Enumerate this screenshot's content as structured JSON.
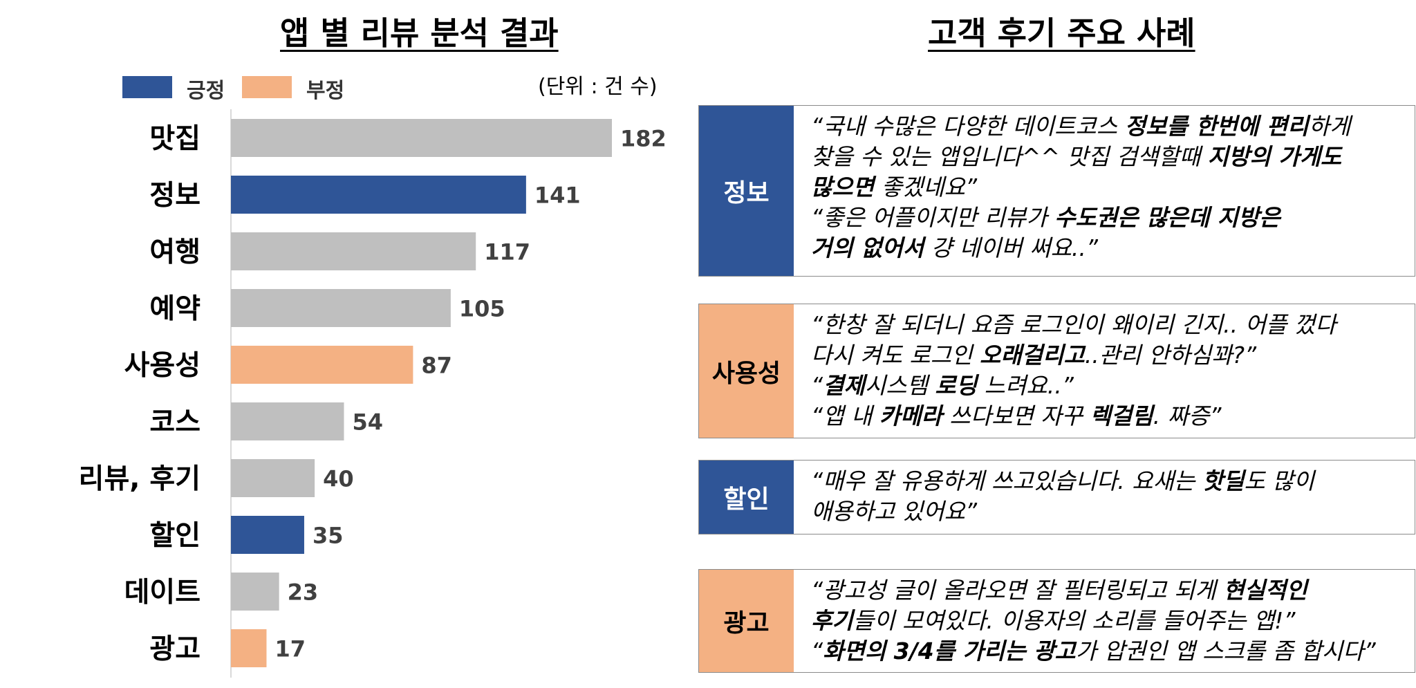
{
  "left_title": "앱 별 리뷰 분석 결과",
  "right_title": "고객 후기 주요 사례",
  "legend": [
    {
      "label": "긍정",
      "color": "#2f5597"
    },
    {
      "label": "부정",
      "color": "#f4b183"
    }
  ],
  "unit_note": "(단위 : 건 수)",
  "chart_data": {
    "type": "bar",
    "orientation": "horizontal",
    "categories": [
      "맛집",
      "정보",
      "여행",
      "예약",
      "사용성",
      "코스",
      "리뷰, 후기",
      "할인",
      "데이트",
      "광고"
    ],
    "values": [
      182,
      141,
      117,
      105,
      87,
      54,
      40,
      35,
      23,
      17
    ],
    "sentiment": [
      "neutral",
      "positive",
      "neutral",
      "neutral",
      "negative",
      "neutral",
      "neutral",
      "positive",
      "neutral",
      "negative"
    ],
    "colors": {
      "positive": "#2f5597",
      "negative": "#f4b183",
      "neutral": "#bfbfbf"
    },
    "xlim": [
      0,
      200
    ],
    "grid": false,
    "legend_position": "top-left"
  },
  "cases": [
    {
      "tag": "정보",
      "tag_type": "positive",
      "lines": [
        [
          {
            "t": "“국내 수많은 다양한 데이트코스 "
          },
          {
            "t": "정보를 한번에 편리",
            "b": true
          },
          {
            "t": "하게"
          }
        ],
        [
          {
            "t": "찾을 수 있는 앱입니다^^ 맛집 검색할때 "
          },
          {
            "t": "지방의 가게도",
            "b": true
          }
        ],
        [
          {
            "t": "많으면",
            "b": true
          },
          {
            "t": " 좋겠네요”"
          }
        ],
        [
          {
            "t": "“좋은 어플이지만 리뷰가 "
          },
          {
            "t": "수도권은 많은데 지방은",
            "b": true
          }
        ],
        [
          {
            "t": "거의 없어서",
            "b": true
          },
          {
            "t": " 걍 네이버 써요..”"
          }
        ]
      ]
    },
    {
      "tag": "사용성",
      "tag_type": "negative",
      "lines": [
        [
          {
            "t": "“한창 잘 되더니 요즘 로그인이 왜이리 긴지.. 어플 껐다"
          }
        ],
        [
          {
            "t": "다시 켜도 로그인 "
          },
          {
            "t": "오래걸리고",
            "b": true
          },
          {
            "t": "..관리 안하심꽈?”"
          }
        ],
        [
          {
            "t": "“"
          },
          {
            "t": "결제",
            "b": true
          },
          {
            "t": "시스템 "
          },
          {
            "t": "로딩",
            "b": true
          },
          {
            "t": " 느려요..”"
          }
        ],
        [
          {
            "t": "“앱 내 "
          },
          {
            "t": "카메라",
            "b": true
          },
          {
            "t": " 쓰다보면 자꾸 "
          },
          {
            "t": "렉걸림",
            "b": true
          },
          {
            "t": ". 짜증”"
          }
        ]
      ]
    },
    {
      "tag": "할인",
      "tag_type": "positive",
      "lines": [
        [
          {
            "t": "“매우 잘 유용하게 쓰고있습니다. 요새는 "
          },
          {
            "t": "핫딜",
            "b": true
          },
          {
            "t": "도 많이"
          }
        ],
        [
          {
            "t": "애용하고 있어요”"
          }
        ]
      ]
    },
    {
      "tag": "광고",
      "tag_type": "negative",
      "lines": [
        [
          {
            "t": "“광고성 글이 올라오면 잘 필터링되고 되게 "
          },
          {
            "t": "현실적인",
            "b": true
          }
        ],
        [
          {
            "t": "후기",
            "b": true
          },
          {
            "t": "들이 모여있다. 이용자의 소리를 들어주는 앱!”"
          }
        ],
        [
          {
            "t": "“"
          },
          {
            "t": "화면의 3/4를 가리는 광고",
            "b": true
          },
          {
            "t": "가 압권인 앱 스크롤 좀 합시다”"
          }
        ]
      ]
    }
  ]
}
